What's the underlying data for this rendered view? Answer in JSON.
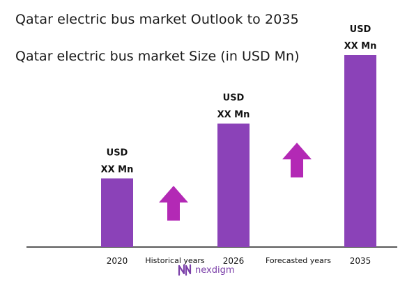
{
  "title": "Qatar electric bus market Outlook to 2035",
  "subtitle": "Qatar electric bus market Size (in USD Mn)",
  "chart_data": {
    "type": "bar",
    "categories": [
      "2020",
      "2026",
      "2035"
    ],
    "values": [
      10,
      18,
      28
    ],
    "data_labels": [
      [
        "USD",
        "XX Mn"
      ],
      [
        "USD",
        "XX Mn"
      ],
      [
        "USD",
        "XX Mn"
      ]
    ],
    "bar_color": "#8b42b8",
    "arrow_color": "#b329b5",
    "period_labels": [
      "Historical years",
      "Forecasted years"
    ],
    "grid": false,
    "legend": "none",
    "ylim": [
      0,
      30
    ]
  },
  "brand": {
    "name": "nexdigm",
    "color": "#7a3ea8"
  }
}
